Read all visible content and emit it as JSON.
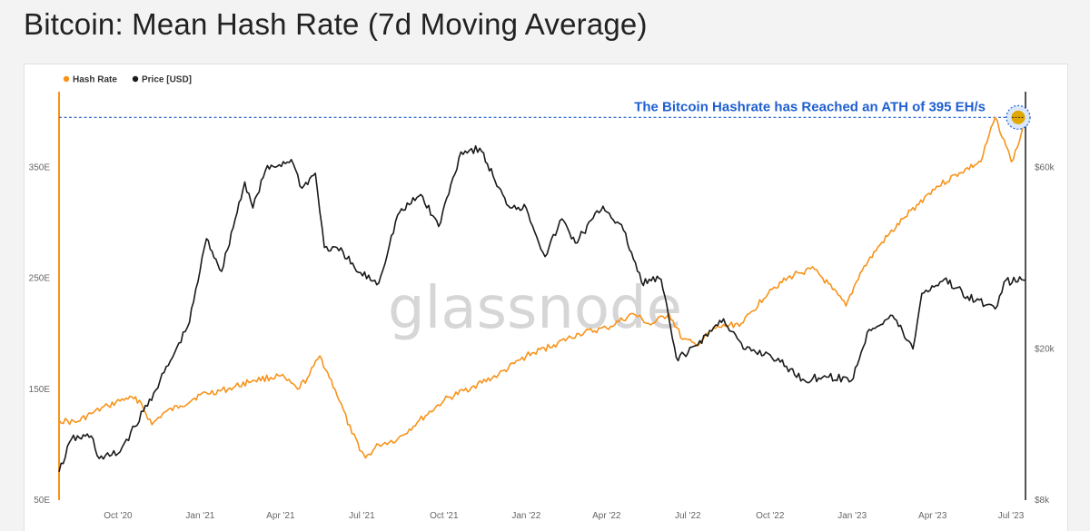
{
  "title": "Bitcoin: Mean Hash Rate (7d Moving Average)",
  "watermark": "glassnode",
  "colors": {
    "hash": "#f7931a",
    "price": "#1a1a1a",
    "annotation": "#1f5fd1",
    "left_axis": "#f7931a",
    "right_axis": "#1a1a1a"
  },
  "chart_data": {
    "type": "line",
    "legend": {
      "position": "top-left",
      "entries": [
        "Hash Rate",
        "Price [USD]"
      ]
    },
    "grid": false,
    "x_ticks": [
      "Oct '20",
      "Jan '21",
      "Apr '21",
      "Jul '21",
      "Oct '21",
      "Jan '22",
      "Apr '22",
      "Jul '22",
      "Oct '22",
      "Jan '23",
      "Apr '23",
      "Jul '23"
    ],
    "x_range": [
      "2020-07-27",
      "2023-07-14"
    ],
    "left_axis": {
      "ticks": [
        "50E",
        "150E",
        "250E",
        "350E"
      ],
      "range": [
        50,
        410
      ]
    },
    "right_axis": {
      "scale": "log",
      "ticks": [
        "$8k",
        "$20k",
        "$60k"
      ],
      "range": [
        8000,
        90000
      ]
    },
    "annotation": {
      "text": "The Bitcoin Hashrate has Reached an ATH of 395 EH/s",
      "value": 395
    },
    "series": [
      {
        "name": "Hash Rate",
        "axis": "left",
        "points": [
          [
            "2020-07-27",
            122
          ],
          [
            "2020-08-15",
            120
          ],
          [
            "2020-09-01",
            128
          ],
          [
            "2020-09-20",
            135
          ],
          [
            "2020-10-10",
            142
          ],
          [
            "2020-10-25",
            140
          ],
          [
            "2020-11-08",
            118
          ],
          [
            "2020-11-20",
            128
          ],
          [
            "2020-12-10",
            135
          ],
          [
            "2021-01-01",
            145
          ],
          [
            "2021-02-01",
            150
          ],
          [
            "2021-03-01",
            158
          ],
          [
            "2021-04-01",
            162
          ],
          [
            "2021-04-20",
            150
          ],
          [
            "2021-05-01",
            160
          ],
          [
            "2021-05-15",
            180
          ],
          [
            "2021-06-01",
            150
          ],
          [
            "2021-06-20",
            110
          ],
          [
            "2021-07-05",
            88
          ],
          [
            "2021-07-20",
            100
          ],
          [
            "2021-08-10",
            105
          ],
          [
            "2021-09-01",
            120
          ],
          [
            "2021-10-01",
            140
          ],
          [
            "2021-11-01",
            152
          ],
          [
            "2021-12-01",
            163
          ],
          [
            "2022-01-01",
            180
          ],
          [
            "2022-02-01",
            190
          ],
          [
            "2022-03-01",
            200
          ],
          [
            "2022-04-01",
            205
          ],
          [
            "2022-05-01",
            218
          ],
          [
            "2022-05-20",
            208
          ],
          [
            "2022-06-10",
            218
          ],
          [
            "2022-06-25",
            195
          ],
          [
            "2022-07-10",
            190
          ],
          [
            "2022-08-01",
            205
          ],
          [
            "2022-09-01",
            210
          ],
          [
            "2022-10-01",
            240
          ],
          [
            "2022-11-01",
            255
          ],
          [
            "2022-11-20",
            258
          ],
          [
            "2022-12-10",
            240
          ],
          [
            "2022-12-25",
            225
          ],
          [
            "2023-01-10",
            255
          ],
          [
            "2023-02-01",
            280
          ],
          [
            "2023-03-01",
            305
          ],
          [
            "2023-04-01",
            330
          ],
          [
            "2023-05-01",
            345
          ],
          [
            "2023-05-25",
            355
          ],
          [
            "2023-06-10",
            395
          ],
          [
            "2023-06-20",
            375
          ],
          [
            "2023-06-28",
            355
          ],
          [
            "2023-07-05",
            368
          ],
          [
            "2023-07-14",
            395
          ]
        ]
      },
      {
        "name": "Price [USD]",
        "axis": "right",
        "points": [
          [
            "2020-07-27",
            9500
          ],
          [
            "2020-08-10",
            11600
          ],
          [
            "2020-09-01",
            11800
          ],
          [
            "2020-09-10",
            10300
          ],
          [
            "2020-10-01",
            10600
          ],
          [
            "2020-10-20",
            12500
          ],
          [
            "2020-11-10",
            15300
          ],
          [
            "2020-12-01",
            19000
          ],
          [
            "2020-12-20",
            23500
          ],
          [
            "2021-01-08",
            39000
          ],
          [
            "2021-01-25",
            32000
          ],
          [
            "2021-02-20",
            55000
          ],
          [
            "2021-03-01",
            47000
          ],
          [
            "2021-03-15",
            59000
          ],
          [
            "2021-04-13",
            63000
          ],
          [
            "2021-04-25",
            53000
          ],
          [
            "2021-05-10",
            58000
          ],
          [
            "2021-05-20",
            37000
          ],
          [
            "2021-06-10",
            36000
          ],
          [
            "2021-06-25",
            32000
          ],
          [
            "2021-07-20",
            29800
          ],
          [
            "2021-08-10",
            45000
          ],
          [
            "2021-09-05",
            51000
          ],
          [
            "2021-09-25",
            42000
          ],
          [
            "2021-10-20",
            66000
          ],
          [
            "2021-11-10",
            67500
          ],
          [
            "2021-11-25",
            57000
          ],
          [
            "2021-12-10",
            48000
          ],
          [
            "2022-01-01",
            47000
          ],
          [
            "2022-01-22",
            35000
          ],
          [
            "2022-02-10",
            44000
          ],
          [
            "2022-02-25",
            38000
          ],
          [
            "2022-03-28",
            47500
          ],
          [
            "2022-04-20",
            41000
          ],
          [
            "2022-05-10",
            30000
          ],
          [
            "2022-06-01",
            30500
          ],
          [
            "2022-06-18",
            19000
          ],
          [
            "2022-07-01",
            19500
          ],
          [
            "2022-08-10",
            24000
          ],
          [
            "2022-09-01",
            20000
          ],
          [
            "2022-10-01",
            19300
          ],
          [
            "2022-11-09",
            16500
          ],
          [
            "2022-12-01",
            17000
          ],
          [
            "2022-12-31",
            16500
          ],
          [
            "2023-01-20",
            22500
          ],
          [
            "2023-02-15",
            24500
          ],
          [
            "2023-03-10",
            20000
          ],
          [
            "2023-03-20",
            28000
          ],
          [
            "2023-04-14",
            30500
          ],
          [
            "2023-05-10",
            27500
          ],
          [
            "2023-06-10",
            25500
          ],
          [
            "2023-06-20",
            30000
          ],
          [
            "2023-07-14",
            30300
          ]
        ]
      }
    ]
  }
}
